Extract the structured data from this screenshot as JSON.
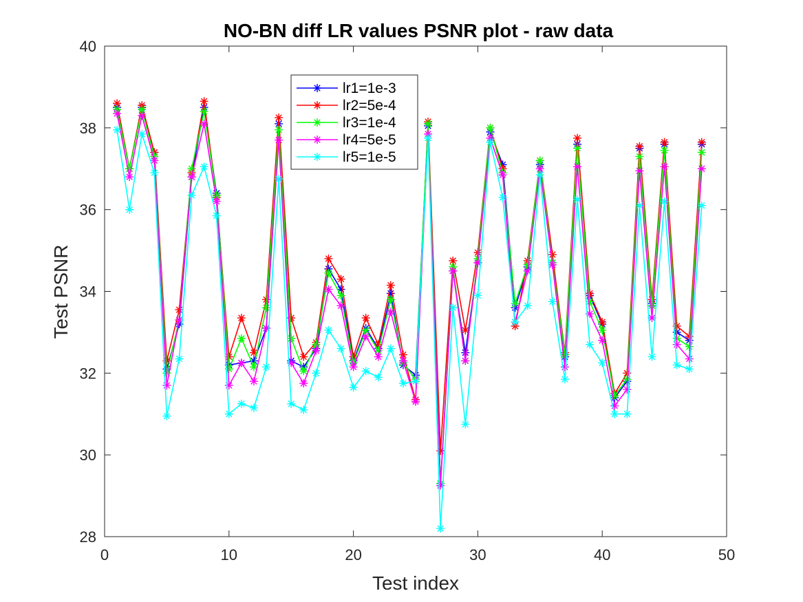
{
  "chart_data": {
    "type": "line",
    "title": "NO-BN diff LR values PSNR plot - raw data",
    "xlabel": "Test index",
    "ylabel": "Test PSNR",
    "xlim": [
      0,
      50
    ],
    "ylim": [
      28,
      40
    ],
    "xticks": [
      0,
      10,
      20,
      30,
      40,
      50
    ],
    "yticks": [
      28,
      30,
      32,
      34,
      36,
      38,
      40
    ],
    "grid": false,
    "legend_position": "upper-middle",
    "marker": "asterisk",
    "x": [
      1,
      2,
      3,
      4,
      5,
      6,
      7,
      8,
      9,
      10,
      11,
      12,
      13,
      14,
      15,
      16,
      17,
      18,
      19,
      20,
      21,
      22,
      23,
      24,
      25,
      26,
      27,
      28,
      29,
      30,
      31,
      32,
      33,
      34,
      35,
      36,
      37,
      38,
      39,
      40,
      41,
      42,
      43,
      44,
      45,
      46,
      47,
      48
    ],
    "series": [
      {
        "name": "lr1=1e-3",
        "color": "#0000ff",
        "values": [
          38.5,
          37.0,
          38.5,
          37.4,
          32.1,
          33.2,
          36.8,
          38.5,
          36.4,
          32.2,
          32.25,
          32.3,
          33.1,
          38.1,
          32.3,
          32.15,
          32.6,
          34.55,
          34.05,
          32.3,
          33.1,
          32.6,
          33.95,
          32.2,
          31.95,
          38.05,
          29.3,
          34.5,
          32.5,
          34.7,
          37.9,
          37.1,
          33.6,
          34.6,
          37.1,
          34.7,
          32.4,
          37.6,
          33.9,
          33.2,
          31.4,
          31.8,
          37.5,
          33.7,
          37.6,
          33.0,
          32.8,
          37.6
        ]
      },
      {
        "name": "lr2=5e-4",
        "color": "#ff0000",
        "values": [
          38.6,
          37.0,
          38.55,
          37.4,
          32.3,
          33.55,
          36.9,
          38.65,
          36.3,
          32.4,
          33.35,
          32.5,
          33.8,
          38.25,
          33.35,
          32.4,
          32.75,
          34.8,
          34.3,
          32.4,
          33.35,
          32.7,
          34.15,
          32.45,
          31.35,
          38.15,
          30.1,
          34.75,
          33.05,
          34.95,
          38.0,
          37.0,
          33.15,
          34.75,
          37.2,
          34.9,
          32.5,
          37.75,
          33.95,
          33.25,
          31.5,
          32.0,
          37.55,
          33.8,
          37.65,
          33.15,
          32.9,
          37.65
        ]
      },
      {
        "name": "lr3=1e-4",
        "color": "#00ff00",
        "values": [
          38.45,
          37.0,
          38.45,
          37.3,
          32.0,
          33.3,
          37.0,
          38.4,
          36.35,
          32.1,
          32.85,
          32.15,
          33.6,
          37.95,
          32.85,
          32.05,
          32.7,
          34.45,
          33.9,
          32.25,
          33.05,
          32.55,
          33.8,
          32.25,
          31.85,
          38.1,
          29.3,
          34.6,
          32.3,
          34.8,
          38.0,
          36.9,
          33.7,
          34.65,
          37.2,
          34.7,
          32.45,
          37.5,
          33.75,
          33.05,
          31.45,
          31.85,
          37.3,
          33.65,
          37.45,
          32.85,
          32.65,
          37.4
        ]
      },
      {
        "name": "lr4=5e-5",
        "color": "#ff00ff",
        "values": [
          38.35,
          36.8,
          38.3,
          37.2,
          31.7,
          33.3,
          36.8,
          38.1,
          36.2,
          31.7,
          32.25,
          31.8,
          33.1,
          37.7,
          32.25,
          31.75,
          32.55,
          34.05,
          33.65,
          32.15,
          32.9,
          32.4,
          33.5,
          32.3,
          31.3,
          37.85,
          29.25,
          34.5,
          32.3,
          34.7,
          37.75,
          36.85,
          33.25,
          34.5,
          37.0,
          34.65,
          32.15,
          37.05,
          33.45,
          32.8,
          31.2,
          31.6,
          36.95,
          33.35,
          37.05,
          32.7,
          32.35,
          37.0
        ]
      },
      {
        "name": "lr5=1e-5",
        "color": "#00ffff",
        "values": [
          37.95,
          36.0,
          37.85,
          36.9,
          30.95,
          32.35,
          36.35,
          37.05,
          35.85,
          31.0,
          31.25,
          31.15,
          32.15,
          36.75,
          31.25,
          31.1,
          32.0,
          33.05,
          32.6,
          31.65,
          32.05,
          31.9,
          32.6,
          31.75,
          31.8,
          37.75,
          28.2,
          33.6,
          30.75,
          33.9,
          37.65,
          36.3,
          33.25,
          33.65,
          36.85,
          33.75,
          31.85,
          36.25,
          32.7,
          32.25,
          31.0,
          31.0,
          36.1,
          32.4,
          36.2,
          32.2,
          32.1,
          36.1
        ]
      }
    ]
  }
}
